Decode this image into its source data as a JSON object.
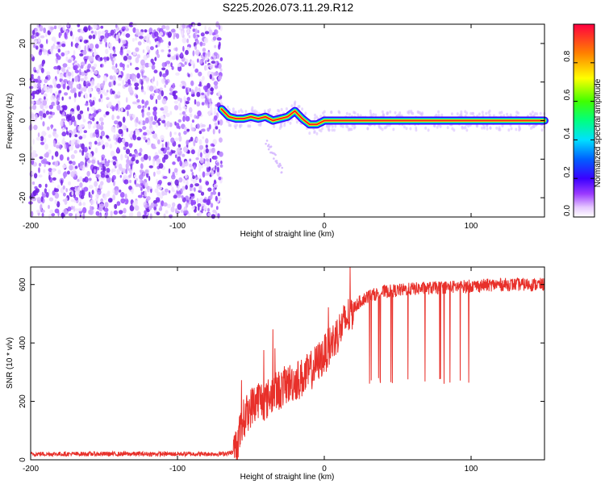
{
  "title": "S225.2026.073.11.29.R12",
  "chart_data": [
    {
      "type": "heatmap",
      "xlabel": "Height of straight line (km)",
      "ylabel": "Frequency (Hz)",
      "xlim": [
        -200,
        150
      ],
      "ylim": [
        -25,
        25
      ],
      "x_ticks": [
        "-200",
        "-100",
        "0",
        "100"
      ],
      "y_ticks": [
        "-20",
        "-10",
        "0",
        "10",
        "20"
      ],
      "noise_region_x": [
        -200,
        -70
      ],
      "signal_trace": {
        "x": [
          -70,
          -65,
          -60,
          -55,
          -50,
          -45,
          -40,
          -35,
          -30,
          -25,
          -20,
          -15,
          -10,
          -5,
          0,
          10,
          20,
          50,
          100,
          150
        ],
        "frequency": [
          3,
          1,
          0.5,
          0.5,
          1,
          0.5,
          1,
          0,
          0.5,
          1,
          2.5,
          0.5,
          -1,
          -1,
          0,
          0,
          0,
          0,
          0,
          0
        ]
      },
      "colorbar": {
        "label": "Normalized spectral amplitude",
        "range": [
          0.0,
          1.0
        ],
        "ticks": [
          "0.0",
          "0.2",
          "0.4",
          "0.6",
          "0.8"
        ]
      }
    },
    {
      "type": "line",
      "xlabel": "Height of straight line (km)",
      "ylabel": "SNR (10 * v/v)",
      "xlim": [
        -200,
        150
      ],
      "ylim": [
        0,
        660
      ],
      "x_ticks": [
        "-200",
        "-100",
        "0",
        "100"
      ],
      "y_ticks": [
        "0",
        "200",
        "400",
        "600"
      ],
      "series": [
        {
          "color": "#e8302a",
          "x": [
            -200,
            -180,
            -160,
            -140,
            -120,
            -100,
            -80,
            -70,
            -62,
            -58,
            -55,
            -50,
            -45,
            -40,
            -35,
            -30,
            -25,
            -20,
            -15,
            -10,
            -5,
            0,
            5,
            10,
            15,
            20,
            25,
            30,
            40,
            60,
            80,
            100,
            120,
            150
          ],
          "values": [
            20,
            20,
            20,
            20,
            20,
            20,
            20,
            20,
            25,
            80,
            140,
            180,
            210,
            200,
            230,
            240,
            260,
            270,
            280,
            300,
            330,
            360,
            400,
            440,
            480,
            520,
            545,
            560,
            575,
            585,
            590,
            595,
            600,
            600
          ]
        }
      ]
    }
  ]
}
